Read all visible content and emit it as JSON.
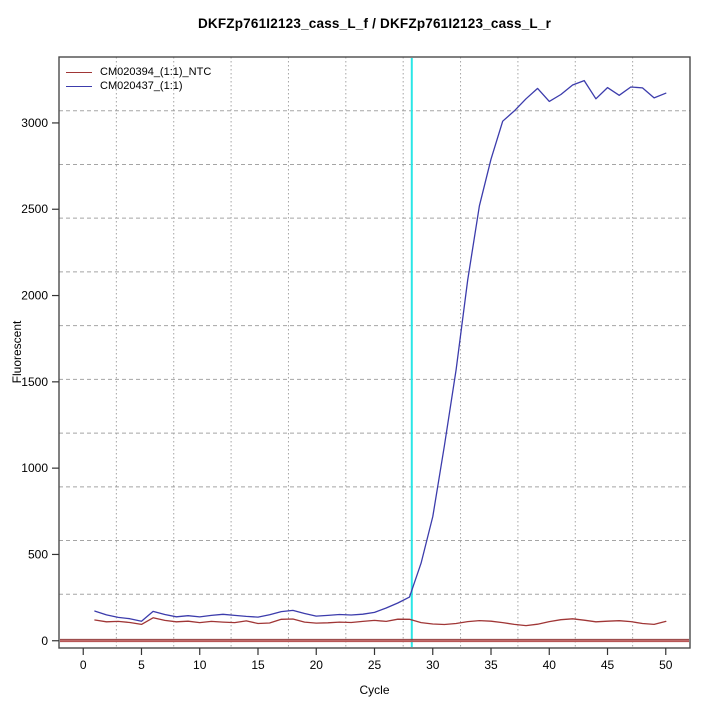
{
  "chart_data": {
    "type": "line",
    "title": "DKFZp761I2123_cass_L_f / DKFZp761I2123_cass_L_r",
    "xlabel": "Cycle",
    "ylabel": "Fluorescent",
    "x_ticks": [
      0,
      5,
      10,
      15,
      20,
      25,
      30,
      35,
      40,
      45,
      50
    ],
    "y_ticks": [
      0,
      500,
      1000,
      1500,
      2000,
      2500,
      3000
    ],
    "xlim": [
      -2.08,
      52.08
    ],
    "ylim": [
      -42,
      3382
    ],
    "grid": {
      "x_divisions": 11,
      "y_divisions": 11,
      "vertical_style": "dotted",
      "horizontal_style": "dashed",
      "color": "#a5a5a5"
    },
    "legend_position": "top-left",
    "x": [
      1,
      2,
      3,
      4,
      5,
      6,
      7,
      8,
      9,
      10,
      11,
      12,
      13,
      14,
      15,
      16,
      17,
      18,
      19,
      20,
      21,
      22,
      23,
      24,
      25,
      26,
      27,
      28,
      29,
      30,
      31,
      32,
      33,
      34,
      35,
      36,
      37,
      38,
      39,
      40,
      41,
      42,
      43,
      44,
      45,
      46,
      47,
      48,
      49,
      50
    ],
    "series": [
      {
        "name": "CM020394_(1:1)_NTC",
        "color": "#a03636",
        "values": [
          120,
          110,
          112,
          106,
          95,
          133,
          118,
          110,
          113,
          105,
          112,
          108,
          105,
          115,
          100,
          103,
          124,
          126,
          108,
          102,
          104,
          108,
          106,
          112,
          118,
          112,
          125,
          124,
          105,
          97,
          94,
          100,
          111,
          117,
          113,
          105,
          95,
          88,
          96,
          111,
          122,
          127,
          119,
          110,
          113,
          116,
          111,
          100,
          95,
          112
        ]
      },
      {
        "name": "CM020437_(1:1)",
        "color": "#3c3cac",
        "values": [
          172,
          150,
          135,
          128,
          113,
          170,
          152,
          139,
          145,
          138,
          147,
          153,
          147,
          141,
          137,
          151,
          169,
          176,
          158,
          143,
          147,
          152,
          149,
          154,
          164,
          190,
          219,
          253,
          450,
          720,
          1130,
          1570,
          2090,
          2520,
          2790,
          3010,
          3070,
          3140,
          3200,
          3125,
          3165,
          3220,
          3245,
          3140,
          3205,
          3160,
          3208,
          3203,
          3145,
          3172
        ]
      }
    ],
    "annotations": {
      "threshold_cycle_line": {
        "x": 28.2,
        "color": "#2ae6e6"
      },
      "zero_line": {
        "y": 0,
        "color": "#b85757"
      }
    }
  }
}
